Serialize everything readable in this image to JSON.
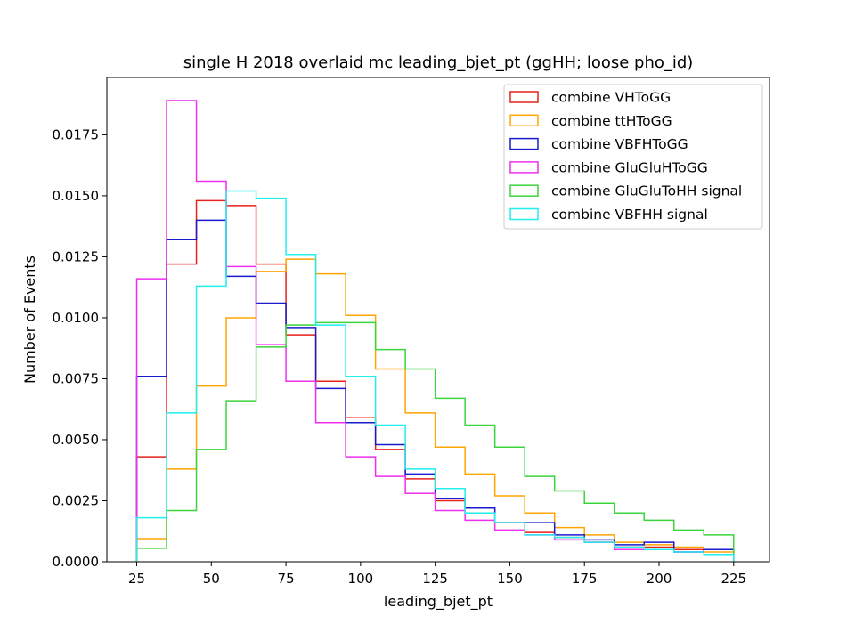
{
  "chart_data": {
    "type": "histogram-step",
    "title": "single H 2018 overlaid mc leading_bjet_pt (ggHH; loose pho_id)",
    "xlabel": "leading_bjet_pt",
    "ylabel": "Number of Events",
    "xlim": [
      15,
      237
    ],
    "ylim": [
      0,
      0.01985
    ],
    "bin_edges": [
      25,
      35,
      45,
      55,
      65,
      75,
      85,
      95,
      105,
      115,
      125,
      135,
      145,
      155,
      165,
      175,
      185,
      195,
      205,
      215,
      225
    ],
    "x_ticks": [
      25,
      50,
      75,
      100,
      125,
      150,
      175,
      200,
      225
    ],
    "x_tick_labels": [
      "25",
      "50",
      "75",
      "100",
      "125",
      "150",
      "175",
      "200",
      "225"
    ],
    "y_ticks": [
      0,
      0.0025,
      0.005,
      0.0075,
      0.01,
      0.0125,
      0.015,
      0.0175
    ],
    "y_tick_labels": [
      "0.0000",
      "0.0025",
      "0.0050",
      "0.0075",
      "0.0100",
      "0.0125",
      "0.0150",
      "0.0175"
    ],
    "legend_position": "upper right",
    "series": [
      {
        "name": "combine VHToGG",
        "color": "#e8221c",
        "values": [
          0.0043,
          0.0122,
          0.0148,
          0.0146,
          0.0122,
          0.0093,
          0.0074,
          0.0059,
          0.0046,
          0.0034,
          0.0025,
          0.002,
          0.0016,
          0.0012,
          0.001,
          0.0008,
          0.0006,
          0.0006,
          0.0005,
          0.0005
        ]
      },
      {
        "name": "combine ttHToGG",
        "color": "#ffa500",
        "values": [
          0.00095,
          0.0038,
          0.0072,
          0.01,
          0.0119,
          0.0124,
          0.0118,
          0.0101,
          0.0079,
          0.0061,
          0.0047,
          0.0036,
          0.0027,
          0.002,
          0.0014,
          0.0011,
          0.0008,
          0.0007,
          0.0006,
          0.0004
        ]
      },
      {
        "name": "combine VBFHToGG",
        "color": "#1a1acd",
        "values": [
          0.0076,
          0.0132,
          0.014,
          0.0117,
          0.0106,
          0.0096,
          0.0071,
          0.0057,
          0.0048,
          0.0036,
          0.0026,
          0.0022,
          0.0016,
          0.0016,
          0.0011,
          0.0009,
          0.0007,
          0.0008,
          0.0004,
          0.0005
        ]
      },
      {
        "name": "combine GluGluHToGG",
        "color": "#ee2fee",
        "values": [
          0.0116,
          0.0189,
          0.0156,
          0.0121,
          0.0089,
          0.0074,
          0.0057,
          0.0043,
          0.0035,
          0.0028,
          0.0021,
          0.0017,
          0.0013,
          0.0011,
          0.0009,
          0.0008,
          0.0005,
          0.0005,
          0.0004,
          0.0003
        ]
      },
      {
        "name": "combine GluGluToHH signal",
        "color": "#3cd43c",
        "values": [
          0.00055,
          0.0021,
          0.0046,
          0.0066,
          0.0088,
          0.0097,
          0.0098,
          0.0098,
          0.0087,
          0.0079,
          0.0067,
          0.0056,
          0.0047,
          0.0035,
          0.0029,
          0.0024,
          0.002,
          0.0017,
          0.0013,
          0.0011
        ]
      },
      {
        "name": "combine VBFHH signal",
        "color": "#22eeee",
        "values": [
          0.0018,
          0.0061,
          0.0113,
          0.0152,
          0.0149,
          0.0126,
          0.0097,
          0.0076,
          0.0056,
          0.0038,
          0.003,
          0.002,
          0.0016,
          0.0011,
          0.001,
          0.0008,
          0.0006,
          0.0005,
          0.0004,
          0.0003
        ]
      }
    ]
  }
}
